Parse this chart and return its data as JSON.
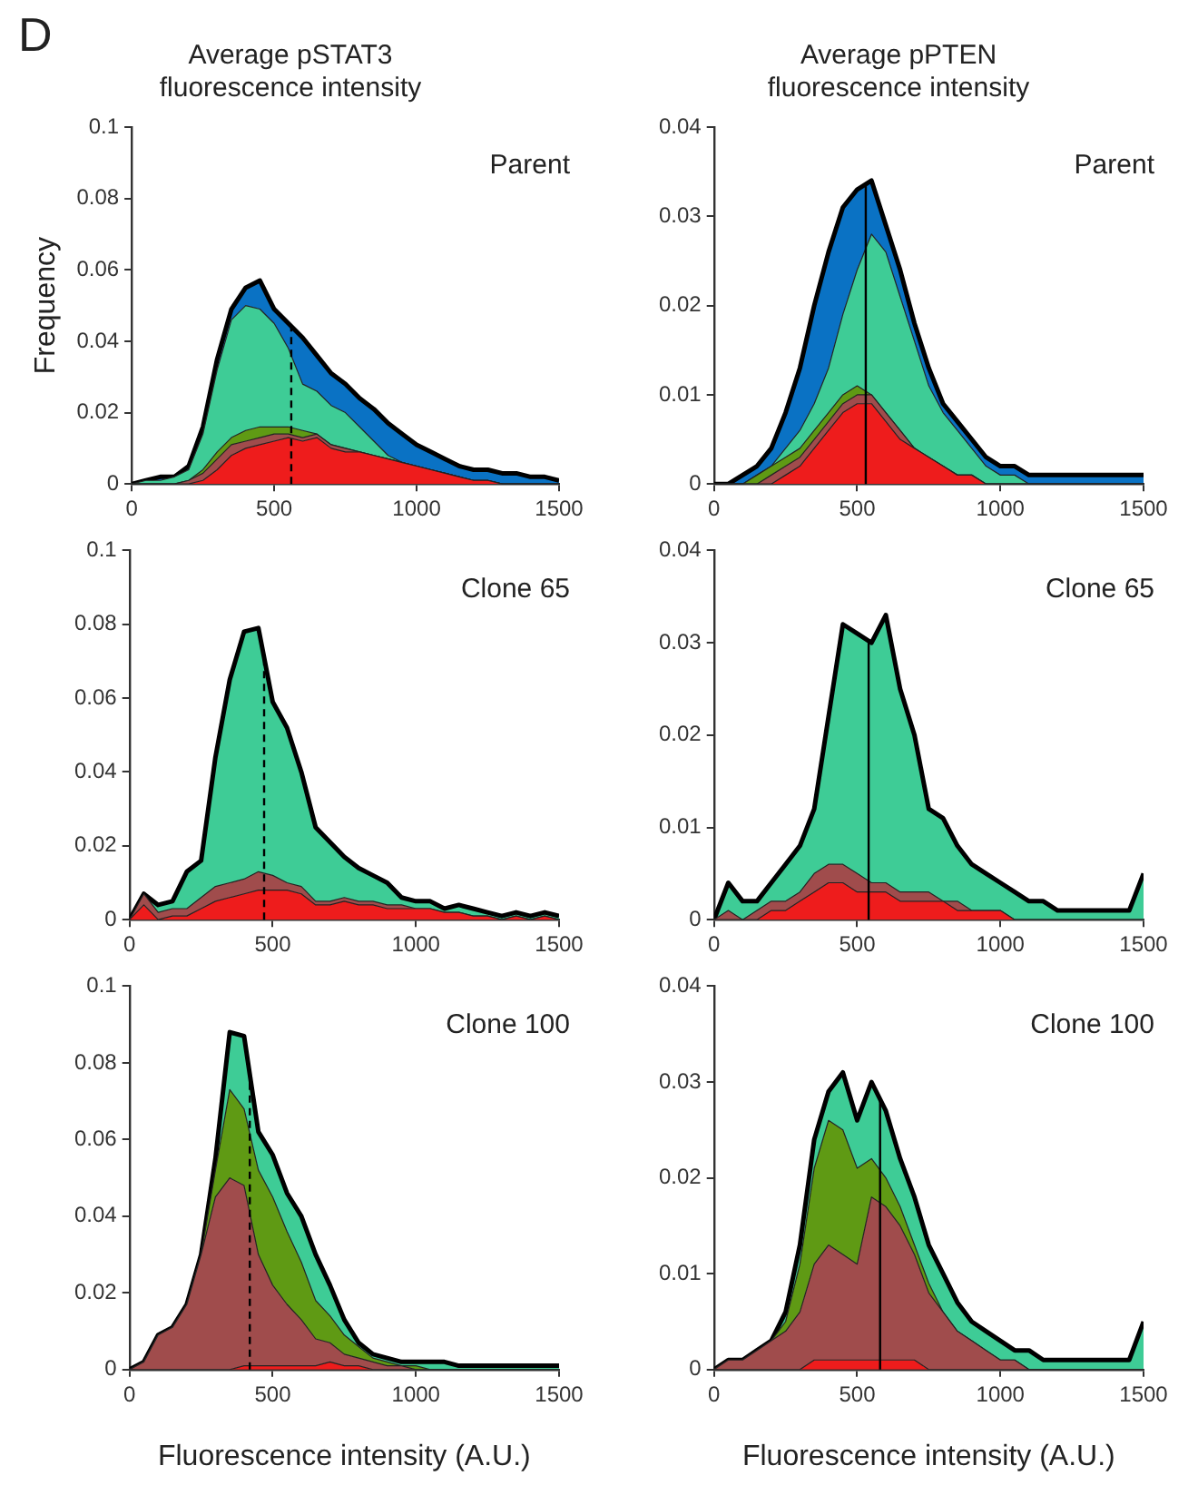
{
  "chart_data": [
    {
      "type": "area",
      "stacked": true,
      "title": "Average pSTAT3\nfluorescence intensity",
      "ylabel": "Frequency",
      "annotations": [
        "D",
        "Parent"
      ],
      "legend": false,
      "grid": false,
      "x": [
        0,
        50,
        100,
        150,
        200,
        250,
        300,
        350,
        400,
        450,
        500,
        550,
        600,
        650,
        700,
        750,
        800,
        850,
        900,
        950,
        1000,
        1050,
        1100,
        1150,
        1200,
        1250,
        1300,
        1350,
        1400,
        1450,
        1500
      ],
      "xlim": [
        0,
        1500
      ],
      "xticks": [
        0,
        500,
        1000,
        1500
      ],
      "ylim": [
        0,
        0.1
      ],
      "yticks": [
        0,
        0.02,
        0.04,
        0.06,
        0.08,
        0.1
      ],
      "ref_lines": [
        {
          "axis": "x",
          "value": 560,
          "line_style": "dashed"
        }
      ],
      "series": [
        {
          "color": "#ee1c1c",
          "values": [
            0,
            0,
            0,
            0,
            0,
            0.001,
            0.004,
            0.008,
            0.01,
            0.011,
            0.012,
            0.013,
            0.012,
            0.013,
            0.01,
            0.009,
            0.009,
            0.008,
            0.007,
            0.006,
            0.005,
            0.004,
            0.003,
            0.002,
            0.001,
            0.001,
            0,
            0,
            0,
            0,
            0
          ]
        },
        {
          "color": "#a04c4c",
          "values": [
            0,
            0,
            0,
            0,
            0.001,
            0.002,
            0.003,
            0.003,
            0.002,
            0.002,
            0.002,
            0.001,
            0.001,
            0.001,
            0.001,
            0.001,
            0,
            0,
            0,
            0,
            0,
            0,
            0,
            0,
            0,
            0,
            0,
            0,
            0,
            0,
            0
          ]
        },
        {
          "color": "#5f9a14",
          "values": [
            0,
            0,
            0,
            0,
            0,
            0.001,
            0.002,
            0.002,
            0.003,
            0.003,
            0.002,
            0.002,
            0.002,
            0,
            0,
            0,
            0,
            0,
            0,
            0,
            0,
            0,
            0,
            0,
            0,
            0,
            0,
            0,
            0,
            0,
            0
          ]
        },
        {
          "color": "#3ecc96",
          "values": [
            0,
            0.001,
            0.001,
            0.002,
            0.003,
            0.01,
            0.023,
            0.033,
            0.035,
            0.033,
            0.029,
            0.022,
            0.013,
            0.012,
            0.011,
            0.01,
            0.007,
            0.004,
            0.001,
            0,
            0,
            0,
            0,
            0,
            0,
            0,
            0,
            0,
            0,
            0,
            0
          ]
        },
        {
          "color": "#0a72c4",
          "values": [
            0,
            0,
            0.001,
            0,
            0.001,
            0.002,
            0.003,
            0.003,
            0.005,
            0.008,
            0.004,
            0.007,
            0.013,
            0.01,
            0.009,
            0.008,
            0.008,
            0.009,
            0.009,
            0.008,
            0.006,
            0.005,
            0.004,
            0.003,
            0.003,
            0.003,
            0.003,
            0.003,
            0.002,
            0.002,
            0.001
          ]
        }
      ]
    },
    {
      "type": "area",
      "stacked": true,
      "title": "Average pPTEN\nfluorescence intensity",
      "annotations": [
        "Parent"
      ],
      "legend": false,
      "grid": false,
      "x": [
        0,
        50,
        100,
        150,
        200,
        250,
        300,
        350,
        400,
        450,
        500,
        550,
        600,
        650,
        700,
        750,
        800,
        850,
        900,
        950,
        1000,
        1050,
        1100,
        1150,
        1200,
        1250,
        1300,
        1350,
        1400,
        1450,
        1500
      ],
      "xlim": [
        0,
        1500
      ],
      "xticks": [
        0,
        500,
        1000,
        1500
      ],
      "ylim": [
        0,
        0.04
      ],
      "yticks": [
        0,
        0.01,
        0.02,
        0.03,
        0.04
      ],
      "ref_lines": [
        {
          "axis": "x",
          "value": 530,
          "line_style": "solid"
        }
      ],
      "series": [
        {
          "color": "#ee1c1c",
          "values": [
            0,
            0,
            0,
            0,
            0,
            0.001,
            0.002,
            0.004,
            0.006,
            0.008,
            0.009,
            0.009,
            0.007,
            0.005,
            0.004,
            0.003,
            0.002,
            0.001,
            0.001,
            0,
            0,
            0,
            0,
            0,
            0,
            0,
            0,
            0,
            0,
            0,
            0
          ]
        },
        {
          "color": "#a04c4c",
          "values": [
            0,
            0,
            0,
            0,
            0.001,
            0.001,
            0.001,
            0.001,
            0.001,
            0.001,
            0.001,
            0.001,
            0.001,
            0.001,
            0,
            0,
            0,
            0,
            0,
            0,
            0,
            0,
            0,
            0,
            0,
            0,
            0,
            0,
            0,
            0,
            0
          ]
        },
        {
          "color": "#5f9a14",
          "values": [
            0,
            0,
            0,
            0.001,
            0.001,
            0.001,
            0.001,
            0.001,
            0.001,
            0.001,
            0.001,
            0,
            0,
            0,
            0,
            0,
            0,
            0,
            0,
            0,
            0,
            0,
            0,
            0,
            0,
            0,
            0,
            0,
            0,
            0,
            0
          ]
        },
        {
          "color": "#3ecc96",
          "values": [
            0,
            0,
            0,
            0,
            0,
            0.001,
            0.002,
            0.003,
            0.005,
            0.009,
            0.013,
            0.018,
            0.018,
            0.015,
            0.012,
            0.008,
            0.006,
            0.005,
            0.003,
            0.002,
            0.001,
            0.001,
            0,
            0,
            0,
            0,
            0,
            0,
            0,
            0,
            0
          ]
        },
        {
          "color": "#0a72c4",
          "values": [
            0,
            0,
            0.001,
            0.001,
            0.002,
            0.004,
            0.007,
            0.011,
            0.013,
            0.012,
            0.009,
            0.006,
            0.003,
            0.003,
            0.002,
            0.002,
            0.001,
            0.001,
            0.001,
            0.001,
            0.001,
            0.001,
            0.001,
            0.001,
            0.001,
            0.001,
            0.001,
            0.001,
            0.001,
            0.001,
            0.001
          ]
        }
      ]
    },
    {
      "type": "area",
      "stacked": true,
      "annotations": [
        "Clone 65"
      ],
      "legend": false,
      "grid": false,
      "x": [
        0,
        50,
        100,
        150,
        200,
        250,
        300,
        350,
        400,
        450,
        500,
        550,
        600,
        650,
        700,
        750,
        800,
        850,
        900,
        950,
        1000,
        1050,
        1100,
        1150,
        1200,
        1250,
        1300,
        1350,
        1400,
        1450,
        1500
      ],
      "xlim": [
        0,
        1500
      ],
      "xticks": [
        0,
        500,
        1000,
        1500
      ],
      "ylim": [
        0,
        0.1
      ],
      "yticks": [
        0,
        0.02,
        0.04,
        0.06,
        0.08,
        0.1
      ],
      "ref_lines": [
        {
          "axis": "x",
          "value": 470,
          "line_style": "dashed"
        }
      ],
      "series": [
        {
          "color": "#ee1c1c",
          "values": [
            0,
            0.004,
            0,
            0.001,
            0.001,
            0.003,
            0.005,
            0.006,
            0.007,
            0.008,
            0.008,
            0.008,
            0.007,
            0.004,
            0.004,
            0.005,
            0.004,
            0.004,
            0.003,
            0.003,
            0.003,
            0.003,
            0.002,
            0.002,
            0.001,
            0.001,
            0,
            0.001,
            0,
            0.001,
            0
          ]
        },
        {
          "color": "#a04c4c",
          "values": [
            0,
            0.003,
            0.002,
            0.002,
            0.002,
            0.003,
            0.004,
            0.004,
            0.004,
            0.005,
            0.004,
            0.002,
            0.002,
            0.001,
            0.001,
            0.001,
            0.001,
            0.001,
            0.001,
            0.001,
            0,
            0,
            0,
            0,
            0,
            0,
            0,
            0,
            0,
            0,
            0
          ]
        },
        {
          "color": "#3ecc96",
          "values": [
            0,
            0,
            0.002,
            0.002,
            0.01,
            0.01,
            0.035,
            0.055,
            0.067,
            0.066,
            0.047,
            0.042,
            0.031,
            0.02,
            0.016,
            0.011,
            0.009,
            0.007,
            0.006,
            0.002,
            0.002,
            0.002,
            0.001,
            0.002,
            0.002,
            0.001,
            0.001,
            0.001,
            0.001,
            0.001,
            0.001
          ]
        }
      ]
    },
    {
      "type": "area",
      "stacked": true,
      "annotations": [
        "Clone 65"
      ],
      "legend": false,
      "grid": false,
      "x": [
        0,
        50,
        100,
        150,
        200,
        250,
        300,
        350,
        400,
        450,
        500,
        550,
        600,
        650,
        700,
        750,
        800,
        850,
        900,
        950,
        1000,
        1050,
        1100,
        1150,
        1200,
        1250,
        1300,
        1350,
        1400,
        1450,
        1500
      ],
      "xlim": [
        0,
        1500
      ],
      "xticks": [
        0,
        500,
        1000,
        1500
      ],
      "ylim": [
        0,
        0.04
      ],
      "yticks": [
        0,
        0.01,
        0.02,
        0.03,
        0.04
      ],
      "ref_lines": [
        {
          "axis": "x",
          "value": 540,
          "line_style": "solid"
        }
      ],
      "series": [
        {
          "color": "#ee1c1c",
          "values": [
            0,
            0,
            0,
            0,
            0.001,
            0.001,
            0.002,
            0.003,
            0.004,
            0.004,
            0.003,
            0.003,
            0.003,
            0.002,
            0.002,
            0.002,
            0.002,
            0.001,
            0.001,
            0.001,
            0.001,
            0,
            0,
            0,
            0,
            0,
            0,
            0,
            0,
            0,
            0
          ]
        },
        {
          "color": "#a04c4c",
          "values": [
            0,
            0.001,
            0,
            0.001,
            0.001,
            0.001,
            0.001,
            0.002,
            0.002,
            0.002,
            0.002,
            0.001,
            0.001,
            0.001,
            0.001,
            0.001,
            0,
            0.001,
            0,
            0,
            0,
            0,
            0,
            0,
            0,
            0,
            0,
            0,
            0,
            0,
            0
          ]
        },
        {
          "color": "#3ecc96",
          "values": [
            0,
            0.003,
            0.002,
            0.001,
            0.002,
            0.004,
            0.005,
            0.007,
            0.016,
            0.026,
            0.026,
            0.026,
            0.029,
            0.022,
            0.017,
            0.009,
            0.009,
            0.006,
            0.005,
            0.004,
            0.003,
            0.003,
            0.002,
            0.002,
            0.001,
            0.001,
            0.001,
            0.001,
            0.001,
            0.001,
            0.005
          ]
        }
      ]
    },
    {
      "type": "area",
      "stacked": true,
      "xlabel": "Fluorescence intensity (A.U.)",
      "annotations": [
        "Clone 100"
      ],
      "legend": false,
      "grid": false,
      "x": [
        0,
        50,
        100,
        150,
        200,
        250,
        300,
        350,
        400,
        450,
        500,
        550,
        600,
        650,
        700,
        750,
        800,
        850,
        900,
        950,
        1000,
        1050,
        1100,
        1150,
        1200,
        1250,
        1300,
        1350,
        1400,
        1450,
        1500
      ],
      "xlim": [
        0,
        1500
      ],
      "xticks": [
        0,
        500,
        1000,
        1500
      ],
      "ylim": [
        0,
        0.1
      ],
      "yticks": [
        0,
        0.02,
        0.04,
        0.06,
        0.08,
        0.1
      ],
      "ref_lines": [
        {
          "axis": "x",
          "value": 420,
          "line_style": "dashed"
        }
      ],
      "series": [
        {
          "color": "#ee1c1c",
          "values": [
            0,
            0,
            0,
            0,
            0,
            0,
            0,
            0,
            0.001,
            0.001,
            0.001,
            0.001,
            0.001,
            0.001,
            0.002,
            0.001,
            0.001,
            0,
            0,
            0,
            0,
            0,
            0,
            0,
            0,
            0,
            0,
            0,
            0,
            0,
            0
          ]
        },
        {
          "color": "#a04c4c",
          "values": [
            0,
            0.002,
            0.009,
            0.011,
            0.017,
            0.03,
            0.045,
            0.05,
            0.047,
            0.029,
            0.021,
            0.016,
            0.012,
            0.007,
            0.005,
            0.003,
            0.002,
            0.002,
            0.001,
            0.001,
            0,
            0,
            0,
            0,
            0,
            0,
            0,
            0,
            0,
            0,
            0
          ]
        },
        {
          "color": "#5f9a14",
          "values": [
            0,
            0,
            0,
            0,
            0,
            0,
            0.007,
            0.023,
            0.02,
            0.022,
            0.023,
            0.019,
            0.015,
            0.01,
            0.007,
            0.005,
            0.003,
            0.001,
            0.001,
            0,
            0.001,
            0,
            0,
            0,
            0,
            0,
            0,
            0,
            0,
            0,
            0
          ]
        },
        {
          "color": "#3ecc96",
          "values": [
            0,
            0,
            0,
            0,
            0,
            0,
            0.003,
            0.015,
            0.019,
            0.01,
            0.011,
            0.01,
            0.012,
            0.012,
            0.008,
            0.004,
            0.001,
            0.001,
            0.001,
            0.001,
            0.001,
            0.002,
            0.002,
            0.001,
            0.001,
            0.001,
            0.001,
            0.001,
            0.001,
            0.001,
            0.001
          ]
        }
      ]
    },
    {
      "type": "area",
      "stacked": true,
      "xlabel": "Fluorescence intensity (A.U.)",
      "annotations": [
        "Clone 100"
      ],
      "legend": false,
      "grid": false,
      "x": [
        0,
        50,
        100,
        150,
        200,
        250,
        300,
        350,
        400,
        450,
        500,
        550,
        600,
        650,
        700,
        750,
        800,
        850,
        900,
        950,
        1000,
        1050,
        1100,
        1150,
        1200,
        1250,
        1300,
        1350,
        1400,
        1450,
        1500
      ],
      "xlim": [
        0,
        1500
      ],
      "xticks": [
        0,
        500,
        1000,
        1500
      ],
      "ylim": [
        0,
        0.04
      ],
      "yticks": [
        0,
        0.01,
        0.02,
        0.03,
        0.04
      ],
      "ref_lines": [
        {
          "axis": "x",
          "value": 580,
          "line_style": "solid"
        }
      ],
      "series": [
        {
          "color": "#ee1c1c",
          "values": [
            0,
            0,
            0,
            0,
            0,
            0,
            0,
            0.001,
            0.001,
            0.001,
            0.001,
            0.001,
            0.001,
            0.001,
            0.001,
            0,
            0,
            0,
            0,
            0,
            0,
            0,
            0,
            0,
            0,
            0,
            0,
            0,
            0,
            0,
            0
          ]
        },
        {
          "color": "#a04c4c",
          "values": [
            0,
            0.001,
            0.001,
            0.002,
            0.003,
            0.004,
            0.006,
            0.01,
            0.012,
            0.011,
            0.01,
            0.017,
            0.016,
            0.014,
            0.011,
            0.008,
            0.006,
            0.004,
            0.003,
            0.002,
            0.001,
            0.001,
            0,
            0,
            0,
            0,
            0,
            0,
            0,
            0,
            0
          ]
        },
        {
          "color": "#5f9a14",
          "values": [
            0,
            0,
            0,
            0,
            0,
            0.001,
            0.005,
            0.01,
            0.013,
            0.013,
            0.01,
            0.004,
            0.003,
            0.002,
            0.001,
            0.001,
            0,
            0,
            0,
            0,
            0,
            0,
            0,
            0,
            0,
            0,
            0,
            0,
            0,
            0,
            0
          ]
        },
        {
          "color": "#3ecc96",
          "values": [
            0,
            0,
            0,
            0,
            0,
            0.001,
            0.002,
            0.003,
            0.003,
            0.006,
            0.005,
            0.008,
            0.007,
            0.005,
            0.005,
            0.004,
            0.004,
            0.003,
            0.002,
            0.002,
            0.002,
            0.001,
            0.002,
            0.001,
            0.001,
            0.001,
            0.001,
            0.001,
            0.001,
            0.001,
            0.005
          ]
        }
      ]
    }
  ]
}
